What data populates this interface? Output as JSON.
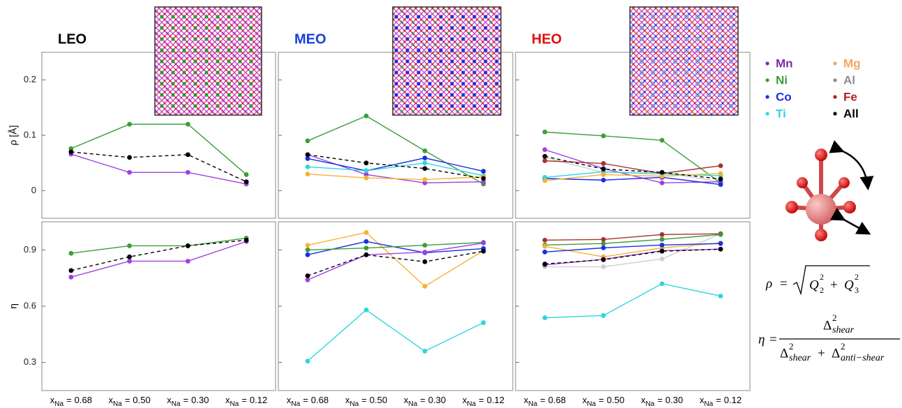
{
  "chart_data": [
    {
      "type": "line",
      "title": "LEO",
      "title_color": "#000000",
      "ylabel": "ρ [Å]",
      "ytick_labels": true,
      "categories": [
        null,
        null,
        null,
        null
      ],
      "ylim": [
        -0.05,
        0.25
      ],
      "yticks": [
        0,
        0.1,
        0.2
      ],
      "series": [
        {
          "name": "Ni",
          "color": "#3a9e3a",
          "values": [
            0.076,
            0.12,
            0.12,
            0.029
          ]
        },
        {
          "name": "Mn",
          "color": "#a040e0",
          "values": [
            0.066,
            0.033,
            0.033,
            0.012
          ]
        },
        {
          "name": "All",
          "color": "#000000",
          "dashed": true,
          "values": [
            0.07,
            0.06,
            0.065,
            0.016
          ]
        }
      ]
    },
    {
      "type": "line",
      "title": "MEO",
      "title_color": "#1a3fe0",
      "ytick_labels": false,
      "categories": [
        null,
        null,
        null,
        null
      ],
      "ylim": [
        -0.05,
        0.25
      ],
      "yticks": [
        0,
        0.1,
        0.2
      ],
      "series": [
        {
          "name": "Ni",
          "color": "#3a9e3a",
          "values": [
            0.09,
            0.135,
            0.072,
            0.012
          ]
        },
        {
          "name": "Mn",
          "color": "#a040e0",
          "values": [
            0.065,
            0.029,
            0.014,
            0.016
          ]
        },
        {
          "name": "Co",
          "color": "#1a2ee6",
          "values": [
            0.058,
            0.036,
            0.059,
            0.035
          ]
        },
        {
          "name": "Ti",
          "color": "#2dd6e0",
          "values": [
            0.043,
            0.036,
            0.05,
            0.027
          ]
        },
        {
          "name": "Mg",
          "color": "#f5b333",
          "values": [
            0.03,
            0.023,
            0.02,
            0.025
          ]
        },
        {
          "name": "All",
          "color": "#000000",
          "dashed": true,
          "values": [
            0.065,
            0.05,
            0.04,
            0.022
          ]
        }
      ]
    },
    {
      "type": "line",
      "title": "HEO",
      "title_color": "#e01010",
      "ytick_labels": false,
      "categories": [
        null,
        null,
        null,
        null
      ],
      "ylim": [
        -0.05,
        0.25
      ],
      "yticks": [
        0,
        0.1,
        0.2
      ],
      "series": [
        {
          "name": "Al",
          "color": "#cfcfcf",
          "values": [
            0.06,
            0.033,
            0.033,
            0.016
          ]
        },
        {
          "name": "Ni",
          "color": "#3a9e3a",
          "values": [
            0.106,
            0.099,
            0.091,
            0.014
          ]
        },
        {
          "name": "Mn",
          "color": "#a040e0",
          "values": [
            0.074,
            0.04,
            0.014,
            0.016
          ]
        },
        {
          "name": "Fe",
          "color": "#a83232",
          "values": [
            0.054,
            0.049,
            0.031,
            0.045
          ]
        },
        {
          "name": "Co",
          "color": "#1a2ee6",
          "values": [
            0.022,
            0.019,
            0.024,
            0.011
          ]
        },
        {
          "name": "Ti",
          "color": "#2dd6e0",
          "values": [
            0.024,
            0.034,
            0.03,
            0.027
          ]
        },
        {
          "name": "Mg",
          "color": "#f5b333",
          "values": [
            0.018,
            0.029,
            0.026,
            0.031
          ]
        },
        {
          "name": "All",
          "color": "#000000",
          "dashed": true,
          "values": [
            0.062,
            0.039,
            0.033,
            0.021
          ]
        }
      ]
    },
    {
      "type": "line",
      "ylabel": "η",
      "ytick_labels": true,
      "category_prefix": {
        "symbol": "x",
        "subscript": "Na",
        "relation": "="
      },
      "categories": [
        "0.68",
        "0.50",
        "0.30",
        "0.12"
      ],
      "ylim": [
        0.15,
        1.05
      ],
      "yticks": [
        0.3,
        0.6,
        0.9
      ],
      "series": [
        {
          "name": "Ni",
          "color": "#3a9e3a",
          "values": [
            0.882,
            0.922,
            0.922,
            0.963
          ]
        },
        {
          "name": "Mn",
          "color": "#a040e0",
          "values": [
            0.755,
            0.84,
            0.84,
            0.945
          ]
        },
        {
          "name": "All",
          "color": "#000000",
          "dashed": true,
          "values": [
            0.79,
            0.863,
            0.922,
            0.952
          ]
        }
      ]
    },
    {
      "type": "line",
      "ytick_labels": false,
      "category_prefix": {
        "symbol": "x",
        "subscript": "Na",
        "relation": "="
      },
      "categories": [
        "0.68",
        "0.50",
        "0.30",
        "0.12"
      ],
      "ylim": [
        0.15,
        1.05
      ],
      "yticks": [
        0.3,
        0.6,
        0.9
      ],
      "series": [
        {
          "name": "Mg",
          "color": "#f5b333",
          "values": [
            0.925,
            0.993,
            0.706,
            0.896
          ]
        },
        {
          "name": "Co",
          "color": "#1a2ee6",
          "values": [
            0.874,
            0.945,
            0.885,
            0.907
          ]
        },
        {
          "name": "Ni",
          "color": "#3a9e3a",
          "values": [
            0.9,
            0.91,
            0.925,
            0.94
          ]
        },
        {
          "name": "Mn",
          "color": "#a040e0",
          "values": [
            0.74,
            0.874,
            0.888,
            0.937
          ]
        },
        {
          "name": "All",
          "color": "#000000",
          "dashed": true,
          "values": [
            0.762,
            0.874,
            0.837,
            0.893
          ]
        },
        {
          "name": "Ti",
          "color": "#2dd6e0",
          "values": [
            0.307,
            0.58,
            0.36,
            0.512
          ]
        }
      ]
    },
    {
      "type": "line",
      "ytick_labels": false,
      "category_prefix": {
        "symbol": "x",
        "subscript": "Na",
        "relation": "="
      },
      "categories": [
        "0.68",
        "0.50",
        "0.30",
        "0.12"
      ],
      "ylim": [
        0.15,
        1.05
      ],
      "yticks": [
        0.3,
        0.6,
        0.9
      ],
      "series": [
        {
          "name": "Al",
          "color": "#cfcfcf",
          "values": [
            0.81,
            0.81,
            0.852,
            0.986
          ]
        },
        {
          "name": "Fe",
          "color": "#a83232",
          "values": [
            0.952,
            0.956,
            0.982,
            0.986
          ]
        },
        {
          "name": "Ni",
          "color": "#3a9e3a",
          "values": [
            0.926,
            0.934,
            0.956,
            0.982
          ]
        },
        {
          "name": "Mg",
          "color": "#f5b333",
          "values": [
            0.919,
            0.863,
            0.911,
            0.937
          ]
        },
        {
          "name": "Co",
          "color": "#1a2ee6",
          "values": [
            0.889,
            0.911,
            0.926,
            0.934
          ]
        },
        {
          "name": "Mn",
          "color": "#a040e0",
          "values": [
            0.82,
            0.85,
            0.896,
            0.904
          ]
        },
        {
          "name": "All",
          "color": "#000000",
          "dashed": true,
          "values": [
            0.825,
            0.848,
            0.893,
            0.904
          ]
        },
        {
          "name": "Ti",
          "color": "#2dd6e0",
          "values": [
            0.538,
            0.55,
            0.72,
            0.654
          ]
        }
      ]
    }
  ],
  "legend": {
    "entries": [
      {
        "name": "Mn",
        "color": "#7b2fa8"
      },
      {
        "name": "Ni",
        "color": "#3a9e3a"
      },
      {
        "name": "Co",
        "color": "#1a2ee6"
      },
      {
        "name": "Ti",
        "color": "#2dd6e0"
      },
      {
        "name": "Mg",
        "color": "#f4a460"
      },
      {
        "name": "Al",
        "color": "#8c8c8c"
      },
      {
        "name": "Fe",
        "color": "#b02020"
      },
      {
        "name": "All",
        "color": "#000000"
      }
    ]
  },
  "formulas": {
    "rho": {
      "lhs": "ρ",
      "eq": "=",
      "term1": {
        "base": "Q",
        "sub": "2",
        "sup": "2"
      },
      "op": "+",
      "term2": {
        "base": "Q",
        "sub": "3",
        "sup": "2"
      }
    },
    "eta": {
      "lhs": "η",
      "eq": "=",
      "numerator": {
        "base": "Δ",
        "sub": "shear",
        "sup": "2"
      },
      "denominator": {
        "term1": {
          "base": "Δ",
          "sub": "shear",
          "sup": "2"
        },
        "op": "+",
        "term2": {
          "base": "Δ",
          "sub": "anti−shear",
          "sup": "2"
        }
      }
    }
  }
}
